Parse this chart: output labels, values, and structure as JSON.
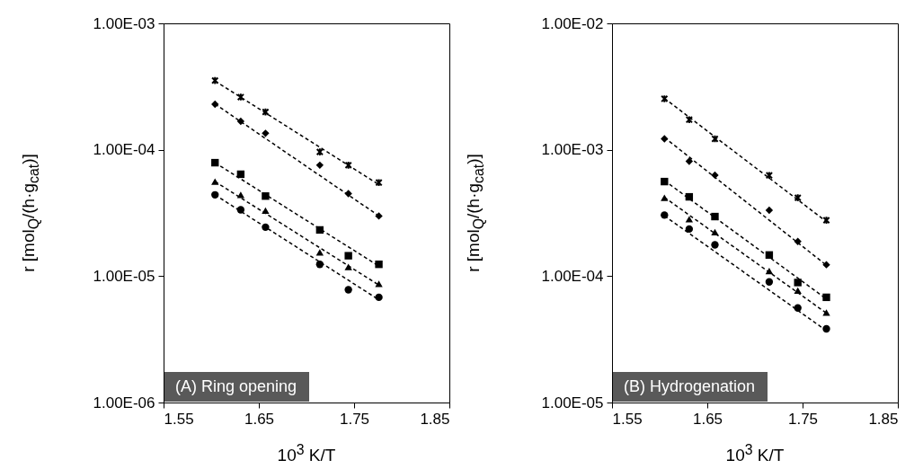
{
  "chart_data": [
    {
      "type": "scatter",
      "xlabel": "10$^{3}$ K/T",
      "ylabel": "r [mol$_{Q}$/(h·g$_{cat}$)]",
      "annotations": [
        "(A) Ring opening"
      ],
      "log": true,
      "grid": false,
      "xlim": [
        1.55,
        1.85
      ],
      "xticks": [
        1.55,
        1.65,
        1.75,
        1.85
      ],
      "ylim": [
        1e-06,
        0.001
      ],
      "yticks": [
        {
          "value": 1e-06,
          "label": "1.00E-06"
        },
        {
          "value": 1e-05,
          "label": "1.00E-05"
        },
        {
          "value": 0.0001,
          "label": "1.00E-04"
        },
        {
          "value": 0.001,
          "label": "1.00E-03"
        }
      ],
      "x": [
        1.604,
        1.631,
        1.657,
        1.714,
        1.744,
        1.776
      ],
      "series": [
        {
          "marker": "cross",
          "color": "#000000",
          "values": [
            0.000353,
            0.000261,
            0.000199,
            9.6e-05,
            7.55e-05,
            5.5e-05
          ]
        },
        {
          "marker": "diamond",
          "color": "#000000",
          "values": [
            0.000229,
            0.000168,
            0.000135,
            7.55e-05,
            4.5e-05,
            2.99e-05
          ]
        },
        {
          "marker": "square",
          "color": "#000000",
          "values": [
            7.9e-05,
            6.4e-05,
            4.3e-05,
            2.32e-05,
            1.45e-05,
            1.24e-05
          ]
        },
        {
          "marker": "triangle",
          "color": "#000000",
          "values": [
            5.6e-05,
            4.4e-05,
            3.3e-05,
            1.54e-05,
            1.18e-05,
            8.7e-06
          ]
        },
        {
          "marker": "circle",
          "color": "#000000",
          "values": [
            4.4e-05,
            3.35e-05,
            2.44e-05,
            1.24e-05,
            7.8e-06,
            6.8e-06
          ]
        },
        {
          "type": "line",
          "line_style": "dashed",
          "color": "#000000",
          "x": [
            1.604,
            1.776
          ],
          "values": [
            0.00035,
            5.3e-05
          ]
        },
        {
          "type": "line",
          "line_style": "dashed",
          "color": "#000000",
          "x": [
            1.604,
            1.776
          ],
          "values": [
            0.00023,
            3e-05
          ]
        },
        {
          "type": "line",
          "line_style": "dashed",
          "color": "#000000",
          "x": [
            1.604,
            1.776
          ],
          "values": [
            7.9e-05,
            1.2e-05
          ]
        },
        {
          "type": "line",
          "line_style": "dashed",
          "color": "#000000",
          "x": [
            1.604,
            1.776
          ],
          "values": [
            5.6e-05,
            8.5e-06
          ]
        },
        {
          "type": "line",
          "line_style": "dashed",
          "color": "#000000",
          "x": [
            1.604,
            1.776
          ],
          "values": [
            4.4e-05,
            6.5e-06
          ]
        }
      ]
    },
    {
      "type": "scatter",
      "xlabel": "10$^{3}$ K/T",
      "ylabel": "r [mol$_{Q}$/(h·g$_{cat}$)]",
      "annotations": [
        "(B) Hydrogenation"
      ],
      "log": true,
      "grid": false,
      "xlim": [
        1.55,
        1.85
      ],
      "xticks": [
        1.55,
        1.65,
        1.75,
        1.85
      ],
      "ylim": [
        1e-05,
        0.01
      ],
      "yticks": [
        {
          "value": 1e-05,
          "label": "1.00E-05"
        },
        {
          "value": 0.0001,
          "label": "1.00E-04"
        },
        {
          "value": 0.001,
          "label": "1.00E-03"
        },
        {
          "value": 0.01,
          "label": "1.00E-02"
        }
      ],
      "x": [
        1.605,
        1.631,
        1.658,
        1.715,
        1.745,
        1.775
      ],
      "series": [
        {
          "marker": "cross",
          "color": "#000000",
          "values": [
            0.00253,
            0.00173,
            0.00122,
            0.000627,
            0.000417,
            0.000277
          ]
        },
        {
          "marker": "diamond",
          "color": "#000000",
          "values": [
            0.00122,
            0.00081,
            0.00063,
            0.000332,
            0.000188,
            0.000123
          ]
        },
        {
          "marker": "square",
          "color": "#000000",
          "values": [
            0.00056,
            0.000424,
            0.000296,
            0.000147,
            8.9e-05,
            6.8e-05
          ]
        },
        {
          "marker": "triangle",
          "color": "#000000",
          "values": [
            0.000417,
            0.000282,
            0.000223,
            0.00011,
            7.7e-05,
            5.15e-05
          ]
        },
        {
          "marker": "circle",
          "color": "#000000",
          "values": [
            0.000304,
            0.000236,
            0.000177,
            9e-05,
            5.6e-05,
            3.83e-05
          ]
        },
        {
          "type": "line",
          "line_style": "dashed",
          "color": "#000000",
          "x": [
            1.605,
            1.775
          ],
          "values": [
            0.00255,
            0.00027
          ]
        },
        {
          "type": "line",
          "line_style": "dashed",
          "color": "#000000",
          "x": [
            1.605,
            1.775
          ],
          "values": [
            0.00125,
            0.000122
          ]
        },
        {
          "type": "line",
          "line_style": "dashed",
          "color": "#000000",
          "x": [
            1.605,
            1.775
          ],
          "values": [
            0.00057,
            6.6e-05
          ]
        },
        {
          "type": "line",
          "line_style": "dashed",
          "color": "#000000",
          "x": [
            1.605,
            1.775
          ],
          "values": [
            0.00042,
            5.1e-05
          ]
        },
        {
          "type": "line",
          "line_style": "dashed",
          "color": "#000000",
          "x": [
            1.605,
            1.775
          ],
          "values": [
            0.0003,
            3.7e-05
          ]
        }
      ]
    }
  ]
}
